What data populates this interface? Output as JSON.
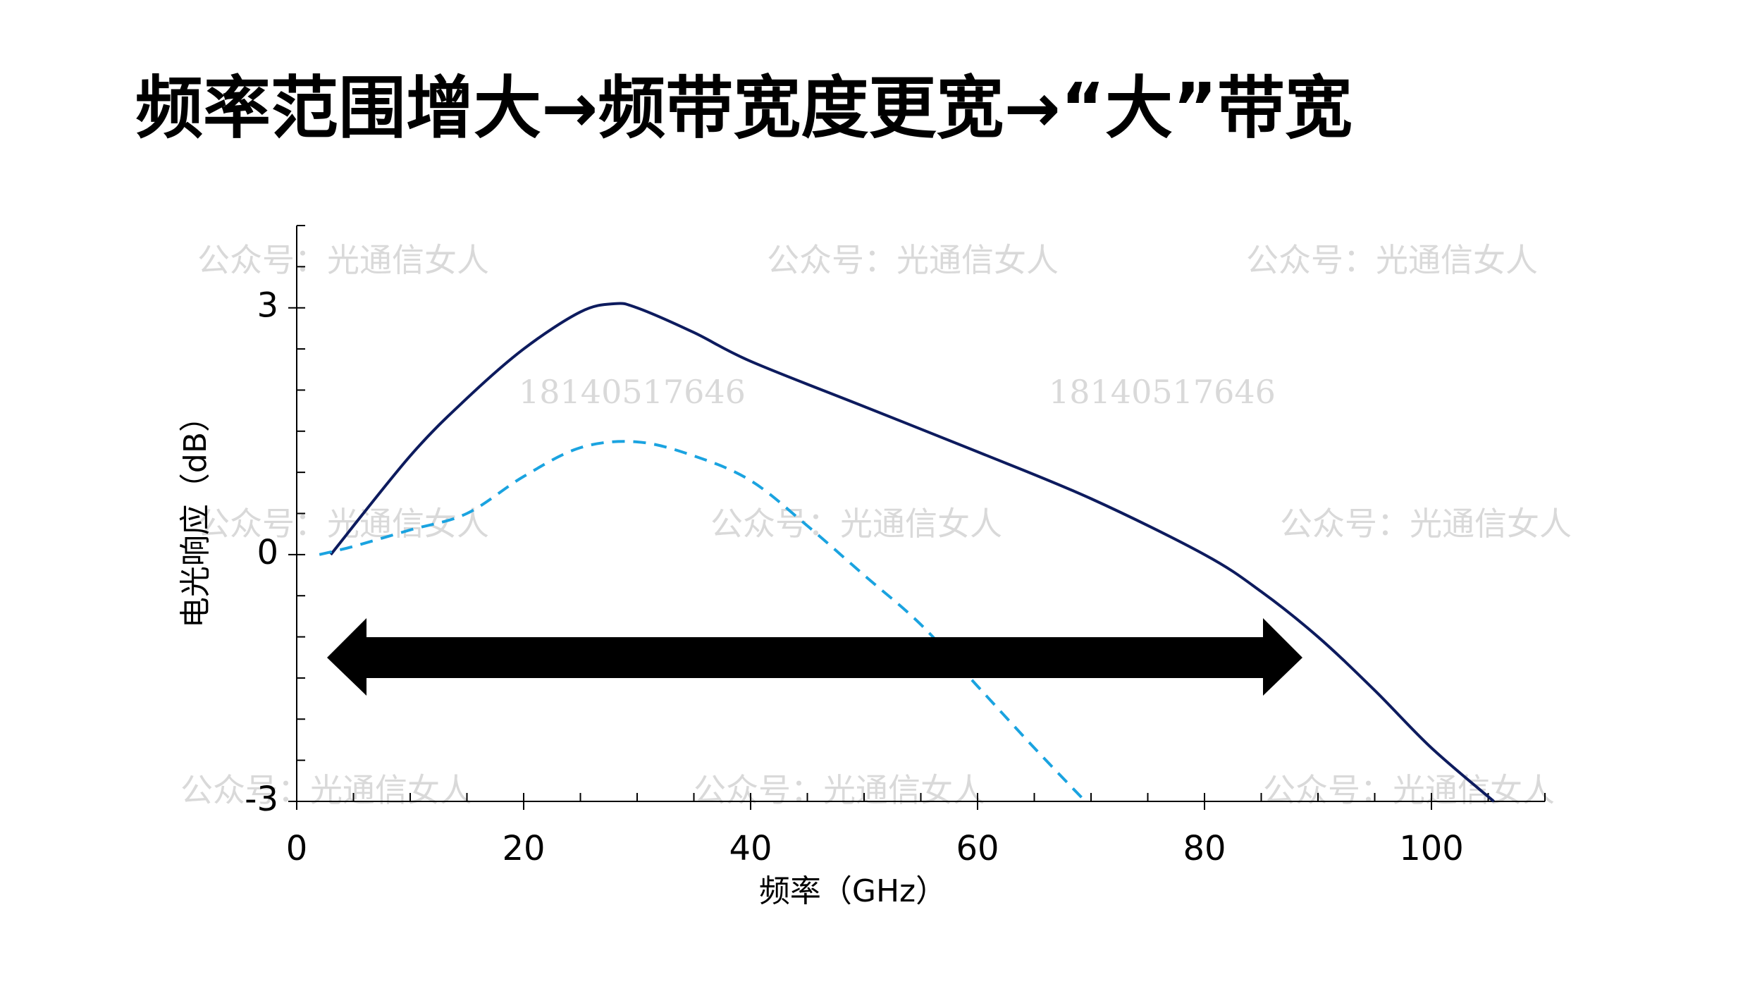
{
  "title": "频率范围增大→频带宽度更宽→“大”带宽",
  "watermarks": [
    "公众号：光通信女人",
    "18140517646"
  ],
  "chart_data": {
    "type": "line",
    "xlabel": "频率（GHz）",
    "ylabel": "电光响应（dB）",
    "xlim": [
      0,
      110
    ],
    "xticks": [
      0,
      20,
      40,
      60,
      80,
      100
    ],
    "xminorticks": [
      5,
      10,
      15,
      25,
      30,
      35,
      45,
      50,
      55,
      65,
      70,
      75,
      85,
      90,
      95,
      105,
      110
    ],
    "ylim": [
      -3,
      4
    ],
    "yticks": [
      -3,
      0,
      3
    ],
    "yminorticks": [
      -2.5,
      -2,
      -1.5,
      -1,
      -0.5,
      0.5,
      1,
      1.5,
      2,
      2.5,
      3.5,
      4
    ],
    "series": [
      {
        "color": "#0d1b5e",
        "dash": false,
        "x": [
          3,
          10,
          15,
          20,
          25,
          28,
          30,
          35,
          40,
          50,
          60,
          70,
          80,
          85,
          90,
          95,
          100,
          105.5
        ],
        "values": [
          0,
          1.2,
          1.9,
          2.5,
          2.95,
          3.05,
          3.0,
          2.7,
          2.35,
          1.8,
          1.25,
          0.68,
          0,
          -0.45,
          -1.0,
          -1.65,
          -2.35,
          -3
        ]
      },
      {
        "color": "#1aa3e0",
        "dash": true,
        "x": [
          2,
          5,
          10,
          15,
          20,
          25,
          30,
          35,
          40,
          45,
          50,
          55,
          60,
          65,
          69.5
        ],
        "values": [
          0,
          0.1,
          0.3,
          0.5,
          0.95,
          1.3,
          1.37,
          1.2,
          0.9,
          0.35,
          -0.25,
          -0.85,
          -1.6,
          -2.35,
          -3
        ]
      }
    ]
  }
}
